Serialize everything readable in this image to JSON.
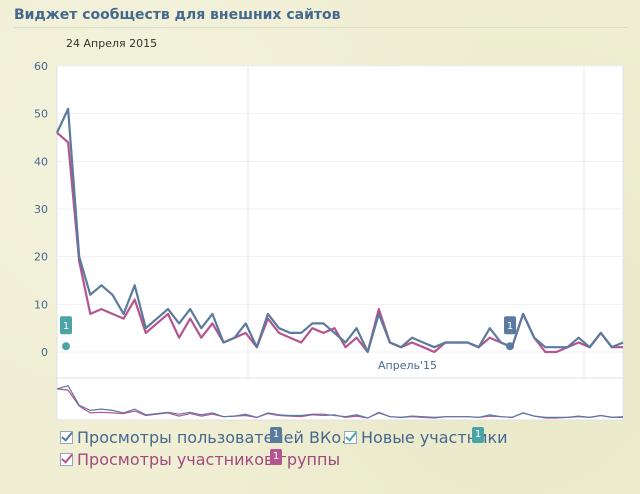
{
  "header": {
    "title": "Виджет сообществ для внешних сайтов",
    "date": "24 Апреля 2015"
  },
  "colors": {
    "views_all": "#5a7a9e",
    "views_members": "#b5558f",
    "new_members": "#4aa3a4"
  },
  "legend": [
    {
      "label": "Просмотры пользователей ВКо...",
      "badge": "1",
      "color": "#5a7a9e",
      "text_color": "#45688e",
      "checked": true
    },
    {
      "label": "Новые участники",
      "badge": "1",
      "color": "#4aa3a4",
      "text_color": "#45688e",
      "checked": true
    },
    {
      "label": "Просмотры участников группы",
      "badge": "1",
      "color": "#b5558f",
      "text_color": "#a04a7e",
      "checked": true
    }
  ],
  "markers": [
    {
      "label": "1",
      "series": "Новые участники",
      "color": "#4aa3a4"
    },
    {
      "label": "1",
      "series": "Просмотры пользователей ВКо...",
      "color": "#5a7a9e"
    }
  ],
  "chart_data": {
    "type": "line",
    "yticks": [
      0,
      10,
      20,
      30,
      40,
      50,
      60
    ],
    "ylim": [
      0,
      60
    ],
    "xlabel_marker": "Апрель'15",
    "grid": true,
    "series": [
      {
        "name": "Просмотры пользователей ВКо...",
        "color": "#5a7a9e",
        "values": [
          46,
          51,
          20,
          12,
          14,
          12,
          8,
          14,
          5,
          7,
          9,
          6,
          9,
          5,
          8,
          2,
          3,
          6,
          1,
          8,
          5,
          4,
          4,
          6,
          6,
          4,
          2,
          5,
          0,
          8,
          2,
          1,
          3,
          2,
          1,
          2,
          2,
          2,
          1,
          5,
          2,
          1,
          8,
          3,
          1,
          1,
          1,
          3,
          1,
          4,
          1,
          2
        ]
      },
      {
        "name": "Просмотры участников группы",
        "color": "#b5558f",
        "values": [
          46,
          44,
          19,
          8,
          9,
          8,
          7,
          11,
          4,
          6,
          8,
          3,
          7,
          3,
          6,
          2,
          3,
          4,
          1,
          7,
          4,
          3,
          2,
          5,
          4,
          5,
          1,
          3,
          0,
          9,
          2,
          1,
          2,
          1,
          0,
          2,
          2,
          2,
          1,
          3,
          2,
          1,
          8,
          3,
          0,
          0,
          1,
          2,
          1,
          4,
          1,
          1
        ]
      }
    ]
  }
}
